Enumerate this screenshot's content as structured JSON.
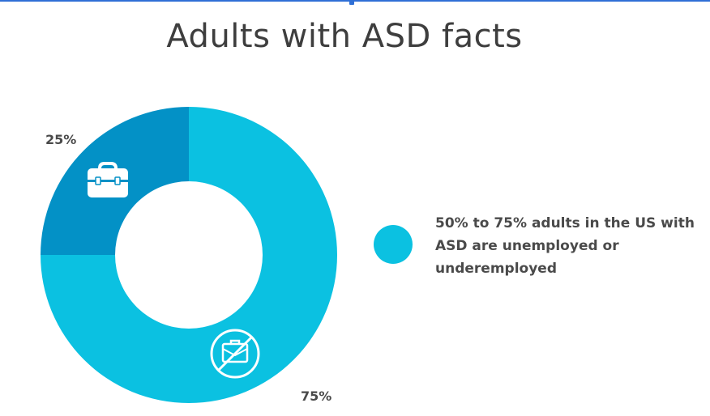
{
  "chart_data": {
    "type": "pie",
    "title": "Adults with ASD facts",
    "slices": [
      {
        "label": "75%",
        "value": 75,
        "color": "#0bc1e1",
        "icon": "no-briefcase-icon"
      },
      {
        "label": "25%",
        "value": 25,
        "color": "#0391c6",
        "icon": "briefcase-icon"
      }
    ],
    "legend": {
      "position": "right",
      "entries": [
        {
          "text": "50% to 75% adults in the US with ASD are unemployed or underemployed",
          "color": "#0bc1e1"
        }
      ]
    }
  }
}
